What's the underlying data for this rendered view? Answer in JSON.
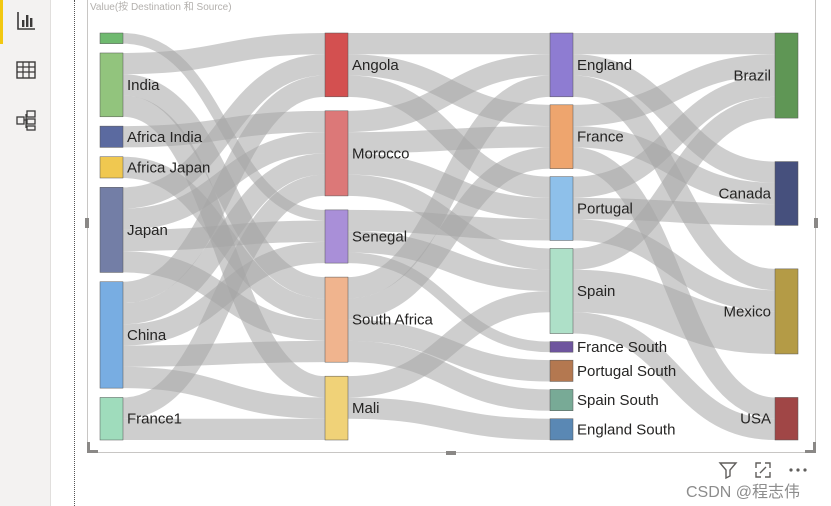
{
  "visual_title": "Value(按 Destination 和 Source)",
  "watermark": "CSDN @程志伟",
  "icons": {
    "nav_report": "bar-chart-icon",
    "nav_data": "table-grid-icon",
    "nav_model": "model-diagram-icon",
    "filter": "filter-icon",
    "focus": "focus-mode-icon",
    "more": "more-options-icon"
  },
  "colors": {
    "accent": "#f2c811",
    "link": "#a6a6a6"
  },
  "chart_data": {
    "type": "sankey",
    "title": "",
    "columns": [
      [
        {
          "id": "top",
          "label": "",
          "color": "#6fb96f"
        },
        {
          "id": "India",
          "label": "India",
          "color": "#92c47d"
        },
        {
          "id": "AfricaIndia",
          "label": "Africa India",
          "color": "#5b6aa0"
        },
        {
          "id": "AfricaJapan",
          "label": "Africa Japan",
          "color": "#f0c850"
        },
        {
          "id": "Japan",
          "label": "Japan",
          "color": "#737ea6"
        },
        {
          "id": "China",
          "label": "China",
          "color": "#78ade2"
        },
        {
          "id": "France1",
          "label": "France1",
          "color": "#9fdcbc"
        }
      ],
      [
        {
          "id": "Angola",
          "label": "Angola",
          "color": "#d35050"
        },
        {
          "id": "Morocco",
          "label": "Morocco",
          "color": "#dc7878"
        },
        {
          "id": "Senegal",
          "label": "Senegal",
          "color": "#a98fd8"
        },
        {
          "id": "SouthAfrica",
          "label": "South Africa",
          "color": "#f0b48e"
        },
        {
          "id": "Mali",
          "label": "Mali",
          "color": "#f0d278"
        }
      ],
      [
        {
          "id": "England",
          "label": "England",
          "color": "#8e7cd2"
        },
        {
          "id": "France",
          "label": "France",
          "color": "#eea56e"
        },
        {
          "id": "Portugal",
          "label": "Portugal",
          "color": "#8ec0ea"
        },
        {
          "id": "Spain",
          "label": "Spain",
          "color": "#aee0c8"
        },
        {
          "id": "FranceSouth",
          "label": "France South",
          "color": "#6e559e"
        },
        {
          "id": "PortugalSouth",
          "label": "Portugal South",
          "color": "#b47850"
        },
        {
          "id": "SpainSouth",
          "label": "Spain South",
          "color": "#78aa96"
        },
        {
          "id": "EnglandSouth",
          "label": "England South",
          "color": "#5a88b4"
        }
      ],
      [
        {
          "id": "Brazil",
          "label": "Brazil",
          "color": "#5f9655"
        },
        {
          "id": "Canada",
          "label": "Canada",
          "color": "#46507d"
        },
        {
          "id": "Mexico",
          "label": "Mexico",
          "color": "#b49b46"
        },
        {
          "id": "USA",
          "label": "USA",
          "color": "#a04646"
        }
      ]
    ],
    "links": [
      {
        "source": "top",
        "target": "Senegal",
        "value": 1
      },
      {
        "source": "India",
        "target": "Angola",
        "value": 2
      },
      {
        "source": "India",
        "target": "SouthAfrica",
        "value": 2
      },
      {
        "source": "India",
        "target": "Mali",
        "value": 2
      },
      {
        "source": "AfricaIndia",
        "target": "Morocco",
        "value": 2
      },
      {
        "source": "AfricaJapan",
        "target": "SouthAfrica",
        "value": 2
      },
      {
        "source": "Japan",
        "target": "Angola",
        "value": 2
      },
      {
        "source": "Japan",
        "target": "Morocco",
        "value": 2
      },
      {
        "source": "Japan",
        "target": "Senegal",
        "value": 2
      },
      {
        "source": "Japan",
        "target": "SouthAfrica",
        "value": 2
      },
      {
        "source": "China",
        "target": "Angola",
        "value": 2
      },
      {
        "source": "China",
        "target": "Morocco",
        "value": 2
      },
      {
        "source": "China",
        "target": "Senegal",
        "value": 2
      },
      {
        "source": "China",
        "target": "SouthAfrica",
        "value": 2
      },
      {
        "source": "China",
        "target": "Mali",
        "value": 2
      },
      {
        "source": "France1",
        "target": "Morocco",
        "value": 2
      },
      {
        "source": "France1",
        "target": "Mali",
        "value": 2
      },
      {
        "source": "Angola",
        "target": "England",
        "value": 2
      },
      {
        "source": "Angola",
        "target": "France",
        "value": 2
      },
      {
        "source": "Angola",
        "target": "Portugal",
        "value": 2
      },
      {
        "source": "Morocco",
        "target": "England",
        "value": 2
      },
      {
        "source": "Morocco",
        "target": "France",
        "value": 2
      },
      {
        "source": "Morocco",
        "target": "Portugal",
        "value": 2
      },
      {
        "source": "Morocco",
        "target": "Spain",
        "value": 2
      },
      {
        "source": "Senegal",
        "target": "Portugal",
        "value": 2
      },
      {
        "source": "Senegal",
        "target": "Spain",
        "value": 2
      },
      {
        "source": "Senegal",
        "target": "FranceSouth",
        "value": 1
      },
      {
        "source": "SouthAfrica",
        "target": "England",
        "value": 2
      },
      {
        "source": "SouthAfrica",
        "target": "France",
        "value": 2
      },
      {
        "source": "SouthAfrica",
        "target": "PortugalSouth",
        "value": 2
      },
      {
        "source": "SouthAfrica",
        "target": "SpainSouth",
        "value": 2
      },
      {
        "source": "Mali",
        "target": "Spain",
        "value": 2
      },
      {
        "source": "Mali",
        "target": "EnglandSouth",
        "value": 2
      },
      {
        "source": "England",
        "target": "Brazil",
        "value": 2
      },
      {
        "source": "England",
        "target": "Canada",
        "value": 2
      },
      {
        "source": "England",
        "target": "Mexico",
        "value": 2
      },
      {
        "source": "France",
        "target": "Brazil",
        "value": 2
      },
      {
        "source": "France",
        "target": "Canada",
        "value": 2
      },
      {
        "source": "France",
        "target": "USA",
        "value": 2
      },
      {
        "source": "Portugal",
        "target": "Brazil",
        "value": 2
      },
      {
        "source": "Portugal",
        "target": "Canada",
        "value": 2
      },
      {
        "source": "Portugal",
        "target": "Mexico",
        "value": 2
      },
      {
        "source": "Spain",
        "target": "Brazil",
        "value": 2
      },
      {
        "source": "Spain",
        "target": "Mexico",
        "value": 4
      },
      {
        "source": "Spain",
        "target": "USA",
        "value": 2
      }
    ]
  }
}
